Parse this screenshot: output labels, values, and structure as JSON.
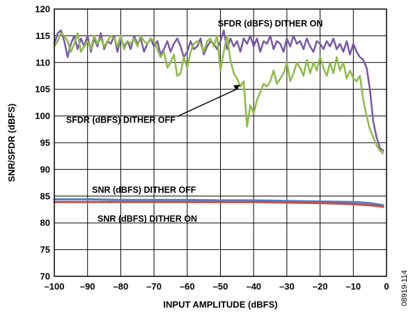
{
  "figure_id": "08919-114",
  "chart_data": {
    "type": "line",
    "title": "",
    "xlabel": "INPUT AMPLITUDE (dBFS)",
    "ylabel": "SNR/SFDR (dBFS)",
    "xlim": [
      -100,
      0
    ],
    "ylim": [
      70,
      120
    ],
    "xticks": [
      -100,
      -90,
      -80,
      -70,
      -60,
      -50,
      -40,
      -30,
      -20,
      -10,
      0
    ],
    "yticks": [
      70,
      75,
      80,
      85,
      90,
      95,
      100,
      105,
      110,
      115,
      120
    ],
    "xtick_labels": [
      "–100",
      "–90",
      "–80",
      "–70",
      "–60",
      "–50",
      "–40",
      "–30",
      "–20",
      "–10",
      "0"
    ],
    "ytick_labels": [
      "70",
      "75",
      "80",
      "85",
      "90",
      "95",
      "100",
      "105",
      "110",
      "115",
      "120"
    ],
    "grid": true,
    "legend": "none",
    "annotations": [
      {
        "text": "SFDR (dBFS) DITHER ON",
        "x": -35,
        "y": 117.3
      },
      {
        "text": "SFDR (dBFS) DITHER OFF",
        "x": -80,
        "y": 99.3,
        "arrow_to": [
          -44,
          105.8
        ]
      },
      {
        "text": "SNR (dBFS) DITHER OFF",
        "x": -73,
        "y": 86.2
      },
      {
        "text": "SNR (dBFS) DITHER ON",
        "x": -72,
        "y": 80.8
      }
    ],
    "series": [
      {
        "color": "#7b5aa6",
        "x": [
          -100,
          -99,
          -98,
          -97,
          -96,
          -95,
          -94,
          -93,
          -92,
          -91,
          -90,
          -89,
          -88,
          -87,
          -86,
          -85,
          -84,
          -83,
          -82,
          -81,
          -80,
          -79,
          -78,
          -77,
          -76,
          -75,
          -74,
          -73,
          -72,
          -71,
          -70,
          -69,
          -68,
          -67,
          -66,
          -65,
          -64,
          -63,
          -62,
          -61,
          -60,
          -59,
          -58,
          -57,
          -56,
          -55,
          -54,
          -53,
          -52,
          -51,
          -50,
          -49,
          -48,
          -47,
          -46,
          -45,
          -44,
          -43,
          -42,
          -41,
          -40,
          -39,
          -38,
          -37,
          -36,
          -35,
          -34,
          -33,
          -32,
          -31,
          -30,
          -29,
          -28,
          -27,
          -26,
          -25,
          -24,
          -23,
          -22,
          -21,
          -20,
          -19,
          -18,
          -17,
          -16,
          -15,
          -14,
          -13,
          -12,
          -11,
          -10,
          -9,
          -8,
          -7,
          -6,
          -5,
          -4,
          -3,
          -2,
          -1
        ],
        "y": [
          113.5,
          115.5,
          116,
          114,
          111,
          113.5,
          115,
          112.5,
          114.5,
          113,
          115,
          112,
          114.5,
          113,
          115.5,
          112.5,
          114,
          113.5,
          115,
          112,
          114.5,
          113,
          114,
          112.5,
          115,
          113.5,
          114.5,
          112,
          113.5,
          114.5,
          113,
          114,
          111.5,
          112.5,
          114,
          112,
          113.5,
          114.5,
          113,
          111,
          112,
          114,
          112.5,
          113,
          114.5,
          111.5,
          113,
          114,
          113.5,
          112.5,
          114,
          116,
          112.5,
          114.5,
          113,
          114,
          112,
          114.5,
          113.5,
          115,
          113,
          114.5,
          112,
          114,
          113.5,
          115,
          112.5,
          114,
          113.5,
          112,
          114.5,
          113,
          115,
          113.5,
          114,
          112.5,
          114.5,
          113,
          112,
          114,
          113.5,
          112.5,
          114,
          113,
          114.5,
          112.5,
          113.5,
          112,
          114,
          111.5,
          113.5,
          112,
          111,
          110.5,
          109,
          105,
          99,
          96,
          94,
          93.5
        ]
      },
      {
        "color": "#8fbc4a",
        "x": [
          -100,
          -99,
          -98,
          -97,
          -96,
          -95,
          -94,
          -93,
          -92,
          -91,
          -90,
          -89,
          -88,
          -87,
          -86,
          -85,
          -84,
          -83,
          -82,
          -81,
          -80,
          -79,
          -78,
          -77,
          -76,
          -75,
          -74,
          -73,
          -72,
          -71,
          -70,
          -69,
          -68,
          -67,
          -66,
          -65,
          -64,
          -63,
          -62,
          -61,
          -60,
          -59,
          -58,
          -57,
          -56,
          -55,
          -54,
          -53,
          -52,
          -51,
          -50,
          -49,
          -48,
          -47,
          -46,
          -45,
          -44,
          -43,
          -42,
          -41,
          -40,
          -39,
          -38,
          -37,
          -36,
          -35,
          -34,
          -33,
          -32,
          -31,
          -30,
          -29,
          -28,
          -27,
          -26,
          -25,
          -24,
          -23,
          -22,
          -21,
          -20,
          -19,
          -18,
          -17,
          -16,
          -15,
          -14,
          -13,
          -12,
          -11,
          -10,
          -9,
          -8,
          -7,
          -6,
          -5,
          -4,
          -3,
          -2,
          -1
        ],
        "y": [
          113,
          114,
          115.5,
          115,
          114,
          112,
          113.5,
          115.5,
          112,
          113,
          114,
          112.5,
          115,
          113.5,
          114.5,
          113,
          114,
          115,
          114.5,
          113,
          115,
          112.5,
          114,
          113.5,
          114.5,
          113,
          115,
          114,
          113.5,
          114.5,
          114,
          112.5,
          111,
          112,
          109,
          110,
          111.5,
          107.5,
          108,
          111,
          109,
          112,
          113.5,
          114,
          113.5,
          112,
          114,
          114.5,
          113,
          115,
          108.5,
          112,
          115,
          110.5,
          108,
          107,
          105.5,
          106.5,
          98,
          102,
          100.5,
          103,
          104.5,
          106,
          105.5,
          106.5,
          108.5,
          106,
          107,
          108,
          110,
          106.5,
          108,
          110,
          109,
          107.5,
          110.5,
          108,
          110,
          108.5,
          111,
          109,
          107.5,
          110,
          108,
          111,
          108.5,
          110,
          107,
          108.5,
          107,
          106.5,
          107.5,
          103,
          100,
          97.5,
          96,
          94.5,
          93.5,
          93
        ]
      },
      {
        "name": "SNR (dBFS) DITHER OFF",
        "color": "#4d7fc1",
        "x": [
          -100,
          -90,
          -80,
          -70,
          -60,
          -50,
          -40,
          -30,
          -20,
          -10,
          -5,
          -2,
          -1
        ],
        "y": [
          84.4,
          84.4,
          84.3,
          84.3,
          84.3,
          84.2,
          84.2,
          84.1,
          84.0,
          83.9,
          83.7,
          83.4,
          83.3
        ]
      },
      {
        "name": "SNR (dBFS) DITHER ON",
        "color": "#c94a45",
        "x": [
          -100,
          -90,
          -80,
          -70,
          -60,
          -50,
          -40,
          -30,
          -20,
          -10,
          -5,
          -2,
          -1
        ],
        "y": [
          83.9,
          83.9,
          83.9,
          83.9,
          83.9,
          83.9,
          83.9,
          83.8,
          83.7,
          83.5,
          83.3,
          83.1,
          83.0
        ]
      }
    ]
  }
}
